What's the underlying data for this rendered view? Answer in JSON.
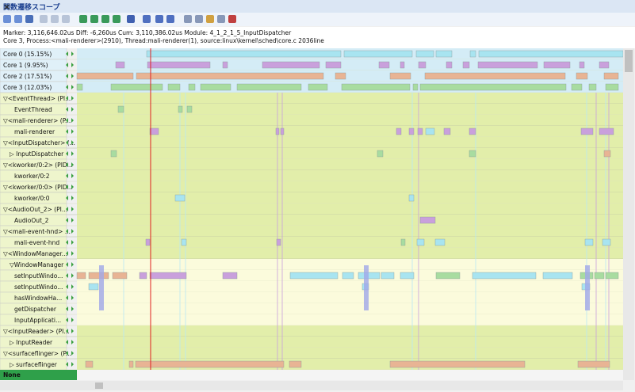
{
  "title": "関数遷移スコープ",
  "info": [
    "Marker: 3,116,646.02us  Diff: -6,260us  Cum: 3,110,386.02us  Module: 4_1_2_1_5_InputDispatcher",
    "Core 3,  Process:<mali-renderer>(2910), Thread:mali-renderer(1), source:linux\\kernel\\sched\\core.c 2036line"
  ],
  "rows": [
    "Core 0 (15.15%)",
    "Core 1 (9.95%)",
    "Core 2 (17.51%)",
    "Core 3 (12.03%)",
    "▽<EventThread> (PI...",
    "EventThread",
    "▽<mali-renderer> (P...",
    "mali-renderer",
    "▽<InputDispatcher> (...",
    "▷ InputDispatcher",
    "▽<kworker/0:2> (PID...",
    "kworker/0:2",
    "▽<kworker/0:0> (PID...",
    "kworker/0:0",
    "▽<AudioOut_2> (PI...",
    "AudioOut_2",
    "▽<mali-event-hnd> ...",
    "mali-event-hnd",
    "▽<WindowManager...",
    "▽WindowManager",
    "setInputWindo...",
    "setInputWindo...",
    "hasWindowHa...",
    "getDispatcher",
    "InputApplicati...",
    "▽<InputReader> (PI...",
    "▷ InputReader",
    "▽<surfaceflinger> (P...",
    "▷ surfaceflinger"
  ],
  "footer": "None"
}
